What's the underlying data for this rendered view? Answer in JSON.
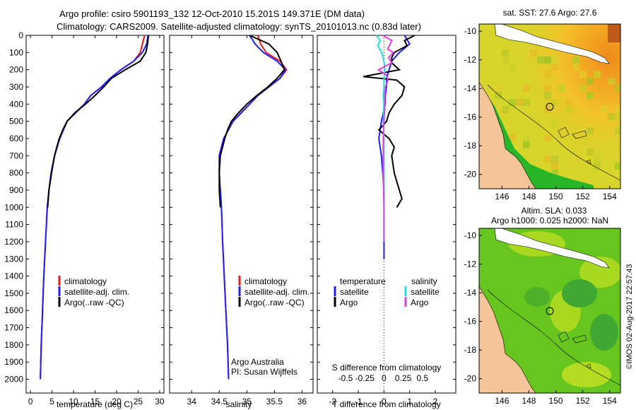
{
  "header": {
    "line1": "Argo profile: csiro 5901193_132 12-Oct-2010 15.201S 149.371E (DM data)",
    "line2": "Climatology: CARS2009. Satellite-adjusted climatology: synTS_20101013.nc (0.83d later)"
  },
  "footer": {
    "stamp": "©IMOS 02-Aug-2017 22:57:43"
  },
  "colors": {
    "climatology": "#e41a1c",
    "satellite": "#1f1fff",
    "argo": "#000000",
    "sal_satellite": "#22dddd",
    "sal_argo": "#e040e0"
  },
  "chart_data": [
    {
      "type": "line",
      "name": "temperature",
      "xlabel": "temperature (deg C)",
      "xlim": [
        -1,
        31
      ],
      "xticks": [
        "0",
        "5",
        "10",
        "15",
        "20",
        "25",
        "30"
      ],
      "xtick_values": [
        0,
        5,
        10,
        15,
        20,
        25,
        30
      ],
      "ylim": [
        0,
        2080
      ],
      "yticks": [
        "0",
        "100",
        "200",
        "300",
        "400",
        "500",
        "600",
        "700",
        "800",
        "900",
        "1000",
        "1100",
        "1200",
        "1300",
        "1400",
        "1500",
        "1600",
        "1700",
        "1800",
        "1900",
        "2000"
      ],
      "ytick_values": [
        0,
        100,
        200,
        300,
        400,
        500,
        600,
        700,
        800,
        900,
        1000,
        1100,
        1200,
        1300,
        1400,
        1500,
        1600,
        1700,
        1800,
        1900,
        2000
      ],
      "legend": [
        "climatology",
        "satellite-adj. clim.",
        "Argo(..raw -QC)"
      ],
      "series": [
        {
          "name": "climatology",
          "depth": [
            0,
            50,
            100,
            150,
            200,
            250,
            300,
            350,
            400,
            450,
            500,
            600,
            700,
            800,
            900,
            1000,
            1200,
            1400,
            1600,
            1800,
            2000
          ],
          "values": [
            26.5,
            26,
            25.5,
            24,
            21,
            18.5,
            16.5,
            14,
            12.5,
            10.5,
            8.5,
            6.8,
            5.6,
            4.8,
            4.3,
            3.9,
            3.5,
            3.1,
            2.8,
            2.5,
            2.3
          ]
        },
        {
          "name": "satellite-adj. clim.",
          "depth": [
            0,
            50,
            100,
            150,
            200,
            250,
            300,
            350,
            400,
            450,
            500,
            600,
            700,
            800,
            900,
            1000,
            1200,
            1400,
            1600,
            1800,
            2000
          ],
          "values": [
            27.3,
            27,
            26,
            24,
            21,
            18.5,
            16.5,
            14,
            12.5,
            10.5,
            8.5,
            6.8,
            5.6,
            4.8,
            4.3,
            3.9,
            3.5,
            3.1,
            2.8,
            2.5,
            2.3
          ]
        },
        {
          "name": "Argo(..raw -QC)",
          "depth": [
            0,
            50,
            100,
            150,
            200,
            250,
            300,
            350,
            400,
            450,
            500,
            550,
            600,
            650,
            700,
            800,
            900,
            1000
          ],
          "values": [
            27.4,
            27.2,
            26.8,
            25.5,
            22,
            18.8,
            17,
            15,
            12.8,
            10.3,
            8.5,
            7.5,
            6.7,
            6.1,
            5.6,
            4.9,
            4.3,
            4
          ]
        }
      ]
    },
    {
      "type": "line",
      "name": "salinity",
      "xlabel": "salinity",
      "xlim": [
        33.6,
        36.2
      ],
      "xticks": [
        "34",
        "34.5",
        "35",
        "35.5",
        "36"
      ],
      "xtick_values": [
        34,
        34.5,
        35,
        35.5,
        36
      ],
      "ylim": [
        0,
        2080
      ],
      "legend": [
        "climatology",
        "satellite-adj. clim.",
        "Argo(..raw -QC)"
      ],
      "annotation": [
        "Argo Australia",
        "PI: Susan Wijffels"
      ],
      "series": [
        {
          "name": "climatology",
          "depth": [
            0,
            50,
            100,
            150,
            200,
            250,
            300,
            350,
            400,
            450,
            500,
            600,
            700,
            800,
            900,
            1000,
            1200,
            1400,
            1600,
            1800,
            2000
          ],
          "values": [
            35.2,
            35.25,
            35.35,
            35.6,
            35.72,
            35.6,
            35.4,
            35.2,
            35.05,
            34.9,
            34.75,
            34.58,
            34.5,
            34.5,
            34.52,
            34.54,
            34.56,
            34.59,
            34.62,
            34.65,
            34.67
          ]
        },
        {
          "name": "satellite-adj. clim.",
          "depth": [
            0,
            50,
            100,
            150,
            200,
            250,
            300,
            350,
            400,
            450,
            500,
            600,
            700,
            800,
            900,
            1000,
            1200,
            1400,
            1600,
            1800,
            2000
          ],
          "values": [
            35.05,
            35.15,
            35.3,
            35.55,
            35.7,
            35.6,
            35.4,
            35.2,
            35.05,
            34.9,
            34.75,
            34.58,
            34.5,
            34.5,
            34.52,
            34.54,
            34.56,
            34.59,
            34.62,
            34.65,
            34.67
          ]
        },
        {
          "name": "Argo(..raw -QC)",
          "depth": [
            0,
            50,
            100,
            150,
            200,
            250,
            300,
            350,
            400,
            450,
            500,
            550,
            600,
            700,
            800,
            900,
            1000
          ],
          "values": [
            35.05,
            35.4,
            35.55,
            35.62,
            35.68,
            35.55,
            35.38,
            35.18,
            35,
            34.85,
            34.72,
            34.65,
            34.6,
            34.52,
            34.5,
            34.5,
            34.52
          ]
        }
      ]
    },
    {
      "type": "line",
      "name": "differences",
      "xlabel": "T difference from climatology",
      "xlim": [
        -2.6,
        2.8
      ],
      "xticks": [
        "-2",
        "-1",
        "0",
        "1",
        "2"
      ],
      "xtick_values": [
        -2,
        -1,
        0,
        1,
        2
      ],
      "top_xlabel": "S difference from climatology",
      "top_xticks": [
        "-0.5",
        "-0.25",
        "0",
        "0.25",
        "0.5"
      ],
      "top_xtick_values": [
        -0.5,
        -0.25,
        0,
        0.25,
        0.5
      ],
      "ylim": [
        0,
        2080
      ],
      "legend_headers": [
        "temperature",
        "salinity"
      ],
      "legend": [
        "satellite",
        "Argo",
        "satellite",
        "Argo"
      ],
      "series": [
        {
          "name": "T satellite",
          "depth": [
            0,
            50,
            100,
            150,
            200,
            250,
            300,
            350,
            400,
            500,
            600,
            700,
            800,
            900,
            1000,
            1100,
            1200,
            1300
          ],
          "values": [
            0.8,
            1,
            0.6,
            0.3,
            0.2,
            0.1,
            0.1,
            0.05,
            0.05,
            -0.1,
            -0.2,
            -0.1,
            -0.05,
            0,
            0,
            0,
            0,
            0
          ]
        },
        {
          "name": "T Argo",
          "depth": [
            0,
            30,
            60,
            100,
            130,
            160,
            200,
            240,
            260,
            300,
            350,
            400,
            450,
            500,
            550,
            600,
            650,
            700,
            800,
            900,
            950,
            1000
          ],
          "values": [
            1.2,
            0.8,
            0.9,
            0.4,
            0.3,
            0.3,
            0.6,
            -0.8,
            0.5,
            0.8,
            0.7,
            0.4,
            0.2,
            0.1,
            -0.2,
            0.2,
            0.4,
            0.3,
            0.4,
            0.6,
            0.7,
            0.5
          ]
        },
        {
          "name": "S satellite",
          "depth": [
            0,
            30,
            60,
            100,
            150,
            200,
            250,
            300,
            350,
            400,
            500,
            600,
            800,
            1000,
            1200
          ],
          "values": [
            -0.1,
            -0.05,
            -0.08,
            -0.03,
            0,
            0.01,
            0,
            0,
            -0.01,
            0,
            -0.01,
            0,
            0,
            0,
            0
          ]
        },
        {
          "name": "S Argo",
          "depth": [
            0,
            30,
            50,
            80,
            100,
            130,
            160,
            200,
            230,
            260,
            300,
            350,
            400,
            500,
            600,
            800,
            1000,
            1200
          ],
          "values": [
            -0.02,
            0.1,
            0.08,
            0.05,
            0.12,
            0.06,
            0.1,
            -0.07,
            0.03,
            0.05,
            0.02,
            0.01,
            0.01,
            0,
            -0.01,
            -0.01,
            0,
            0
          ]
        }
      ]
    },
    {
      "type": "heatmap",
      "name": "sst-map",
      "title": "sat. SST: 27.6 Argo: 27.6",
      "xticks": [
        "146",
        "148",
        "150",
        "152",
        "154"
      ],
      "xtick_values": [
        146,
        148,
        150,
        152,
        154
      ],
      "yticks": [
        "-10",
        "-12",
        "-14",
        "-16",
        "-18",
        "-20"
      ],
      "ytick_values": [
        -10,
        -12,
        -14,
        -16,
        -18,
        -20
      ],
      "xlim": [
        144.3,
        154.8
      ],
      "ylim": [
        -21,
        -9.5
      ],
      "argo_position": [
        149.371,
        -15.201
      ]
    },
    {
      "type": "heatmap",
      "name": "sla-map",
      "title": [
        "Altim. SLA: 0.033",
        "Argo h1000: 0.025 h2000: NaN"
      ],
      "xticks": [
        "146",
        "148",
        "150",
        "152",
        "154"
      ],
      "xtick_values": [
        146,
        148,
        150,
        152,
        154
      ],
      "yticks": [
        "-10",
        "-12",
        "-14",
        "-16",
        "-18",
        "-20"
      ],
      "ytick_values": [
        -10,
        -12,
        -14,
        -16,
        -18,
        -20
      ],
      "xlim": [
        144.3,
        154.8
      ],
      "ylim": [
        -21,
        -9.5
      ],
      "argo_position": [
        149.371,
        -15.201
      ]
    }
  ]
}
